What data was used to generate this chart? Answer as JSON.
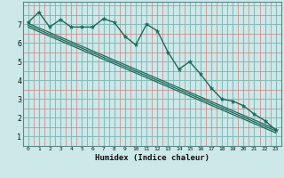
{
  "xlabel": "Humidex (Indice chaleur)",
  "bg_color": "#cce8e8",
  "grid_major_color": "#8bbcbc",
  "grid_minor_color": "#d08080",
  "line_color": "#1a6a5a",
  "xlim": [
    -0.5,
    23.5
  ],
  "ylim": [
    0.5,
    8.2
  ],
  "yticks": [
    1,
    2,
    3,
    4,
    5,
    6,
    7
  ],
  "xticks": [
    0,
    1,
    2,
    3,
    4,
    5,
    6,
    7,
    8,
    9,
    10,
    11,
    12,
    13,
    14,
    15,
    16,
    17,
    18,
    19,
    20,
    21,
    22,
    23
  ],
  "line1_x": [
    0,
    1,
    2,
    3,
    4,
    5,
    6,
    7,
    8,
    9,
    10,
    11,
    12,
    13,
    14,
    15,
    16,
    17,
    18,
    19,
    20,
    21,
    22,
    23
  ],
  "line1_y": [
    7.1,
    7.65,
    6.85,
    7.25,
    6.85,
    6.85,
    6.85,
    7.3,
    7.1,
    6.35,
    5.9,
    7.0,
    6.65,
    5.5,
    4.6,
    5.0,
    4.35,
    3.6,
    3.0,
    2.9,
    2.65,
    2.2,
    1.85,
    1.35
  ],
  "line2_x": [
    0,
    23
  ],
  "line2_y": [
    7.05,
    1.4
  ],
  "line3_x": [
    0,
    23
  ],
  "line3_y": [
    6.95,
    1.3
  ],
  "line4_x": [
    0,
    23
  ],
  "line4_y": [
    6.85,
    1.2
  ]
}
